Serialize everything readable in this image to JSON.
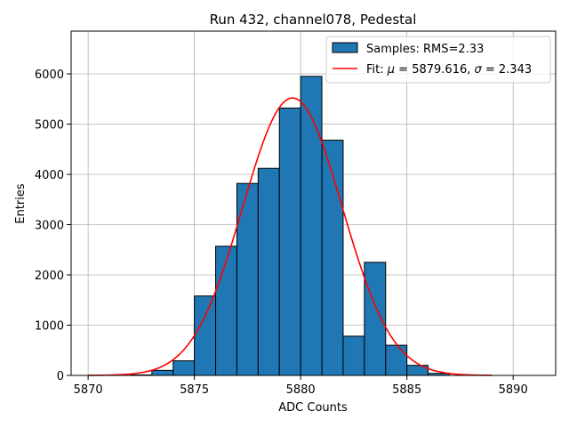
{
  "chart_data": {
    "type": "bar",
    "title": "Run 432, channel078, Pedestal",
    "xlabel": "ADC Counts",
    "ylabel": "Entries",
    "xlim": [
      5869.2,
      5892
    ],
    "ylim": [
      0,
      6850
    ],
    "xticks": [
      5870,
      5875,
      5880,
      5885,
      5890
    ],
    "yticks": [
      0,
      1000,
      2000,
      3000,
      4000,
      5000,
      6000
    ],
    "grid": true,
    "legend_position": "top-right",
    "histogram": {
      "name": "Samples: RMS=2.33",
      "color": "#1f77b4",
      "bin_edges": [
        5872,
        5873,
        5874,
        5875,
        5876,
        5877,
        5878,
        5879,
        5880,
        5881,
        5882,
        5883,
        5884,
        5885,
        5886,
        5887
      ],
      "counts": [
        10,
        100,
        290,
        1580,
        2570,
        3820,
        4120,
        5320,
        5950,
        4680,
        780,
        2250,
        600,
        200,
        40
      ]
    },
    "fit": {
      "name": "Fit: μ = 5879.616, σ = 2.343",
      "name_parts": {
        "prefix": "Fit: ",
        "mu_symbol": "μ",
        "mu_text": " = 5879.616, ",
        "sigma_symbol": "σ",
        "sigma_text": " = 2.343"
      },
      "color": "#ff0000",
      "type": "gaussian",
      "mu": 5879.616,
      "sigma": 2.343,
      "amplitude": 5520,
      "x_range": [
        5870,
        5889
      ]
    }
  }
}
